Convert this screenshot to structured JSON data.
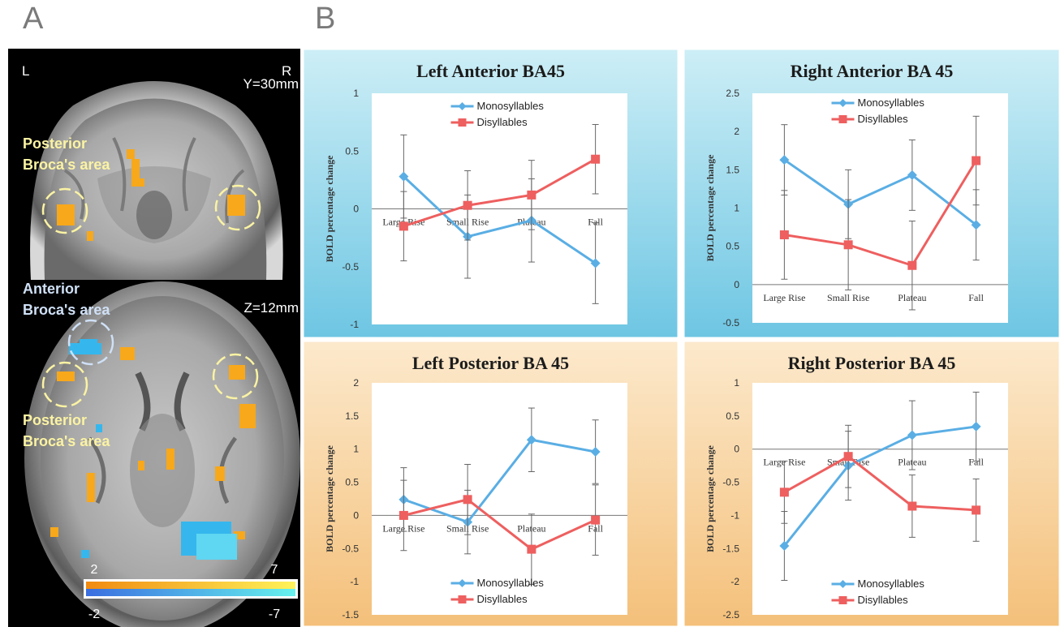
{
  "panel_labels": {
    "a": "A",
    "b": "B"
  },
  "brain": {
    "left_label": "L",
    "right_label": "R",
    "coronal_slice": "Y=30mm",
    "axial_slice": "Z=12mm",
    "posterior_label_top": [
      "Posterior",
      "Broca's area"
    ],
    "anterior_label": [
      "Anterior",
      "Broca's area"
    ],
    "posterior_label_bottom": [
      "Posterior",
      "Broca's area"
    ],
    "colorbar": {
      "pos_min": "2",
      "pos_max": "7",
      "neg_min": "-2",
      "neg_max": "-7"
    },
    "colors": {
      "positive": "#f7a81b",
      "negative": "#35b7ee",
      "label_yellow": "#fbf3a3",
      "label_blue": "#cfe0f6"
    }
  },
  "chart_data": [
    {
      "type": "line",
      "title": "Left Anterior BA45",
      "ylabel": "BOLD percentage change",
      "categories": [
        "Large Rise",
        "Small Rise",
        "Plateau",
        "Fall"
      ],
      "ylim": [
        -1,
        1
      ],
      "yticks": [
        "1",
        "0.5",
        "0",
        "-0.5",
        "-1"
      ],
      "legend_position": "top",
      "background": [
        "#cdeef6",
        "#6ec6e3"
      ],
      "series": [
        {
          "name": "Monosyllables",
          "color": "#5aaee4",
          "values": [
            0.28,
            -0.24,
            -0.1,
            -0.47
          ],
          "err_low": [
            -0.08,
            -0.6,
            -0.46,
            -0.82
          ],
          "err_high": [
            0.64,
            0.12,
            0.26,
            -0.12
          ]
        },
        {
          "name": "Disyllables",
          "color": "#ee5f5f",
          "values": [
            -0.15,
            0.03,
            0.12,
            0.43
          ],
          "err_low": [
            -0.45,
            -0.27,
            -0.18,
            0.13
          ],
          "err_high": [
            0.15,
            0.33,
            0.42,
            0.73
          ]
        }
      ]
    },
    {
      "type": "line",
      "title": "Right Anterior BA 45",
      "ylabel": "BOLD percentage change",
      "categories": [
        "Large Rise",
        "Small Rise",
        "Plateau",
        "Fall"
      ],
      "ylim": [
        -0.5,
        2.5
      ],
      "yticks": [
        "2.5",
        "2",
        "1.5",
        "1",
        "0.5",
        "0",
        "-0.5"
      ],
      "legend_position": "top",
      "background": [
        "#cdeef6",
        "#6ec6e3"
      ],
      "series": [
        {
          "name": "Monosyllables",
          "color": "#5aaee4",
          "values": [
            1.63,
            1.05,
            1.43,
            0.78
          ],
          "err_low": [
            1.17,
            0.6,
            0.97,
            0.32
          ],
          "err_high": [
            2.09,
            1.5,
            1.89,
            1.24
          ]
        },
        {
          "name": "Disyllables",
          "color": "#ee5f5f",
          "values": [
            0.65,
            0.52,
            0.25,
            1.62
          ],
          "err_low": [
            0.07,
            -0.07,
            -0.33,
            1.04
          ],
          "err_high": [
            1.23,
            1.11,
            0.83,
            2.2
          ]
        }
      ]
    },
    {
      "type": "line",
      "title": "Left Posterior BA 45",
      "ylabel": "BOLD percentage change",
      "categories": [
        "Large Rise",
        "Small Rise",
        "Plateau",
        "Fall"
      ],
      "ylim": [
        -1.5,
        2
      ],
      "yticks": [
        "2",
        "1.5",
        "1",
        "0.5",
        "0",
        "-0.5",
        "-1",
        "-1.5"
      ],
      "legend_position": "bottom",
      "background": [
        "#fce9cc",
        "#f4c07a"
      ],
      "series": [
        {
          "name": "Monosyllables",
          "color": "#5aaee4",
          "values": [
            0.24,
            -0.1,
            1.14,
            0.96
          ],
          "err_low": [
            -0.24,
            -0.58,
            0.66,
            0.48
          ],
          "err_high": [
            0.72,
            0.38,
            1.62,
            1.44
          ]
        },
        {
          "name": "Disyllables",
          "color": "#ee5f5f",
          "values": [
            0.0,
            0.24,
            -0.51,
            -0.07
          ],
          "err_low": [
            -0.53,
            -0.29,
            -1.04,
            -0.6
          ],
          "err_high": [
            0.53,
            0.77,
            0.02,
            0.46
          ]
        }
      ]
    },
    {
      "type": "line",
      "title": "Right Posterior BA 45",
      "ylabel": "BOLD percentage change",
      "categories": [
        "Large Rise",
        "Small Rise",
        "Plateau",
        "Fall"
      ],
      "ylim": [
        -2.5,
        1
      ],
      "yticks": [
        "1",
        "0.5",
        "0",
        "-0.5",
        "-1",
        "-1.5",
        "-2",
        "-2.5"
      ],
      "legend_position": "bottom",
      "background": [
        "#fce9cc",
        "#f4c07a"
      ],
      "series": [
        {
          "name": "Monosyllables",
          "color": "#5aaee4",
          "values": [
            -1.46,
            -0.25,
            0.21,
            0.34
          ],
          "err_low": [
            -1.98,
            -0.77,
            -0.31,
            -0.18
          ],
          "err_high": [
            -0.94,
            0.27,
            0.73,
            0.86
          ]
        },
        {
          "name": "Disyllables",
          "color": "#ee5f5f",
          "values": [
            -0.65,
            -0.11,
            -0.86,
            -0.92
          ],
          "err_low": [
            -1.12,
            -0.58,
            -1.33,
            -1.39
          ],
          "err_high": [
            -0.18,
            0.36,
            -0.39,
            -0.45
          ]
        }
      ]
    }
  ]
}
